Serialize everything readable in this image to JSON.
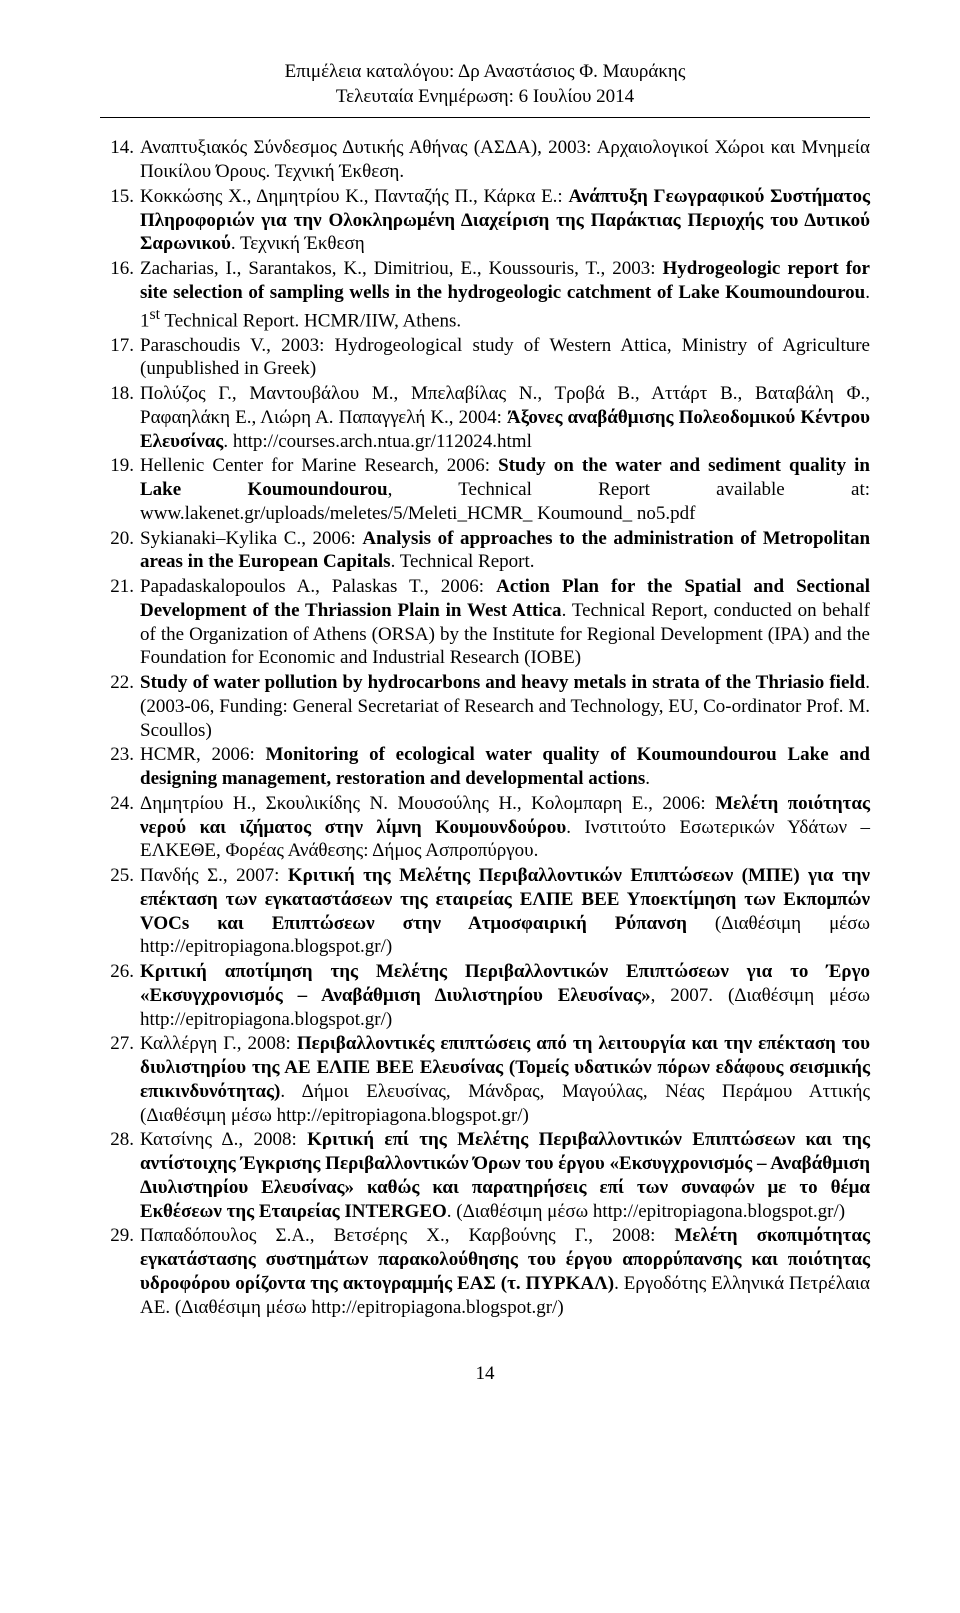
{
  "header": {
    "line1": "Επιμέλεια καταλόγου: Δρ Αναστάσιος Φ. Μαυράκης",
    "line2": "Τελευταία Ενημέρωση: 6 Ιουλίου 2014"
  },
  "start_number": 14,
  "items": [
    {
      "n": "14.",
      "segments": [
        {
          "t": "Αναπτυξιακός Σύνδεσμος Δυτικής Αθήνας (ΑΣΔΑ), 2003: Αρχαιολογικοί Χώροι και Μνημεία Ποικίλου Όρους. Τεχνική Έκθεση."
        }
      ]
    },
    {
      "n": "15.",
      "segments": [
        {
          "t": "Κοκκώσης Χ., Δημητρίου Κ., Πανταζής Π., Κάρκα Ε.: "
        },
        {
          "t": "Ανάπτυξη Γεωγραφικού Συστήματος Πληροφοριών για την Ολοκληρωμένη Διαχείριση της Παράκτιας Περιοχής του Δυτικού Σαρωνικού",
          "b": true
        },
        {
          "t": ". Τεχνική Έκθεση"
        }
      ]
    },
    {
      "n": "16.",
      "segments": [
        {
          "t": "Zacharias, I., Sarantakos, K., Dimitriou, E., Koussouris, T., 2003: "
        },
        {
          "t": "Hydrogeologic report for site selection of sampling wells in the hydrogeologic catchment of Lake Koumoundourou",
          "b": true
        },
        {
          "t": ". 1"
        },
        {
          "t": "st",
          "sup": true
        },
        {
          "t": " Technical Report. HCMR/IIW, Athens."
        }
      ]
    },
    {
      "n": "17.",
      "segments": [
        {
          "t": "Paraschoudis V., 2003: Hydrogeological study of Western Attica, Ministry of Agriculture (unpublished in Greek)"
        }
      ]
    },
    {
      "n": "18.",
      "segments": [
        {
          "t": "Πολύζος Γ., Μαντουβάλου Μ., Μπελαβίλας Ν., Τροβά Β., Αττάρτ Β., Βαταβάλη Φ., Ραφαηλάκη Ε., Λιώρη Α. Παπαγγελή Κ., 2004: "
        },
        {
          "t": "Άξονες αναβάθμισης Πολεοδομικού Κέντρου Ελευσίνας",
          "b": true
        },
        {
          "t": ". http://courses.arch.ntua.gr/112024.html"
        }
      ]
    },
    {
      "n": "19.",
      "segments": [
        {
          "t": "Hellenic Center for Marine Research, 2006: "
        },
        {
          "t": "Study on the water and sediment quality in Lake Koumoundourou",
          "b": true
        },
        {
          "t": ", Technical Report available at: www.lakenet.gr/uploads/meletes/5/Meleti_HCMR_ Koumound_ no5.pdf"
        }
      ]
    },
    {
      "n": "20.",
      "segments": [
        {
          "t": "Sykianaki–Kylika C., 2006: "
        },
        {
          "t": "Analysis of approaches to the administration of Metropolitan areas in the European Capitals",
          "b": true
        },
        {
          "t": ". Technical Report."
        }
      ]
    },
    {
      "n": "21.",
      "segments": [
        {
          "t": "Papadaskalopoulos A., Palaskas T., 2006: "
        },
        {
          "t": "Action Plan for the Spatial and Sectional Development of the Thriassion Plain in West Attica",
          "b": true
        },
        {
          "t": ". Technical Report, conducted on behalf of the Organization of Athens (ORSA) by the Institute for Regional Development (IPA) and the Foundation for Economic and Industrial Research (IOBE)"
        }
      ]
    },
    {
      "n": "22.",
      "segments": [
        {
          "t": "Study of water pollution by hydrocarbons and heavy metals in strata of the Thriasio field",
          "b": true
        },
        {
          "t": ". (2003-06, Funding: General Secretariat of Research and Technology, EU, Co-ordinator Prof. M. Scoullos)"
        }
      ]
    },
    {
      "n": "23.",
      "segments": [
        {
          "t": "HCMR, 2006: "
        },
        {
          "t": "Monitoring of ecological water quality of Koumoundourou Lake and designing management, restoration and developmental actions",
          "b": true
        },
        {
          "t": "."
        }
      ]
    },
    {
      "n": "24.",
      "segments": [
        {
          "t": "Δημητρίου Η., Σκουλικίδης Ν. Μουσούλης Η., Κολομπαρη Ε., 2006: "
        },
        {
          "t": "Μελέτη ποιότητας νερού και ιζήματος στην λίμνη Κουμουνδούρου",
          "b": true
        },
        {
          "t": ". Ινστιτούτο Εσωτερικών Υδάτων – ΕΛΚΕΘΕ, Φορέας Ανάθεσης: Δήμος Ασπροπύργου."
        }
      ]
    },
    {
      "n": "25.",
      "segments": [
        {
          "t": "Πανδής Σ., 2007: "
        },
        {
          "t": "Κριτική της Μελέτης Περιβαλλοντικών Επιπτώσεων (ΜΠΕ) για την επέκταση των εγκαταστάσεων της εταιρείας ΕΛΠΕ ΒΕΕ Υποεκτίμηση των Εκπομπών VOCs και Επιπτώσεων στην Ατμοσφαιρική Ρύπανση ",
          "b": true
        },
        {
          "t": "(Διαθέσιμη μέσω http://epitropiagona.blogspot.gr/)"
        }
      ]
    },
    {
      "n": "26.",
      "segments": [
        {
          "t": "Κριτική αποτίμηση της Μελέτης Περιβαλλοντικών Επιπτώσεων για το Έργο «Εκσυγχρονισμός – Αναβάθμιση Διυλιστηρίου Ελευσίνας»",
          "b": true
        },
        {
          "t": ", 2007. (Διαθέσιμη μέσω http://epitropiagona.blogspot.gr/)"
        }
      ]
    },
    {
      "n": "27.",
      "segments": [
        {
          "t": "Καλλέργη Γ., 2008: "
        },
        {
          "t": "Περιβαλλοντικές επιπτώσεις από τη λειτουργία και την επέκταση του διυλιστηρίου της ΑΕ ΕΛΠΕ ΒΕΕ Ελευσίνας (Τομείς υδατικών πόρων εδάφους σεισμικής επικινδυνότητας)",
          "b": true
        },
        {
          "t": ". Δήμοι Ελευσίνας, Μάνδρας, Μαγούλας, Νέας Περάμου Αττικής (Διαθέσιμη μέσω http://epitropiagona.blogspot.gr/)"
        }
      ]
    },
    {
      "n": "28.",
      "segments": [
        {
          "t": "Κατσίνης Δ., 2008: "
        },
        {
          "t": "Κριτική επί της Μελέτης Περιβαλλοντικών Επιπτώσεων και της αντίστοιχης Έγκρισης Περιβαλλοντικών Όρων του έργου «Εκσυγχρονισμός – Αναβάθμιση Διυλιστηρίου Ελευσίνας» καθώς και παρατηρήσεις επί των συναφών με το θέμα Εκθέσεων της Εταιρείας INTERGEO",
          "b": true
        },
        {
          "t": ". (Διαθέσιμη μέσω http://epitropiagona.blogspot.gr/)"
        }
      ]
    },
    {
      "n": "29.",
      "segments": [
        {
          "t": "Παπαδόπουλος Σ.Α., Βετσέρης Χ., Καρβούνης Γ., 2008: "
        },
        {
          "t": "Μελέτη σκοπιμότητας εγκατάστασης συστημάτων παρακολούθησης του έργου απορρύπανσης και ποιότητας υδροφόρου ορίζοντα της ακτογραμμής ΕΑΣ (τ. ΠΥΡΚΑΛ)",
          "b": true
        },
        {
          "t": ". Εργοδότης Ελληνικά Πετρέλαια ΑΕ. (Διαθέσιμη μέσω http://epitropiagona.blogspot.gr/)"
        }
      ]
    }
  ],
  "page_number": "14"
}
